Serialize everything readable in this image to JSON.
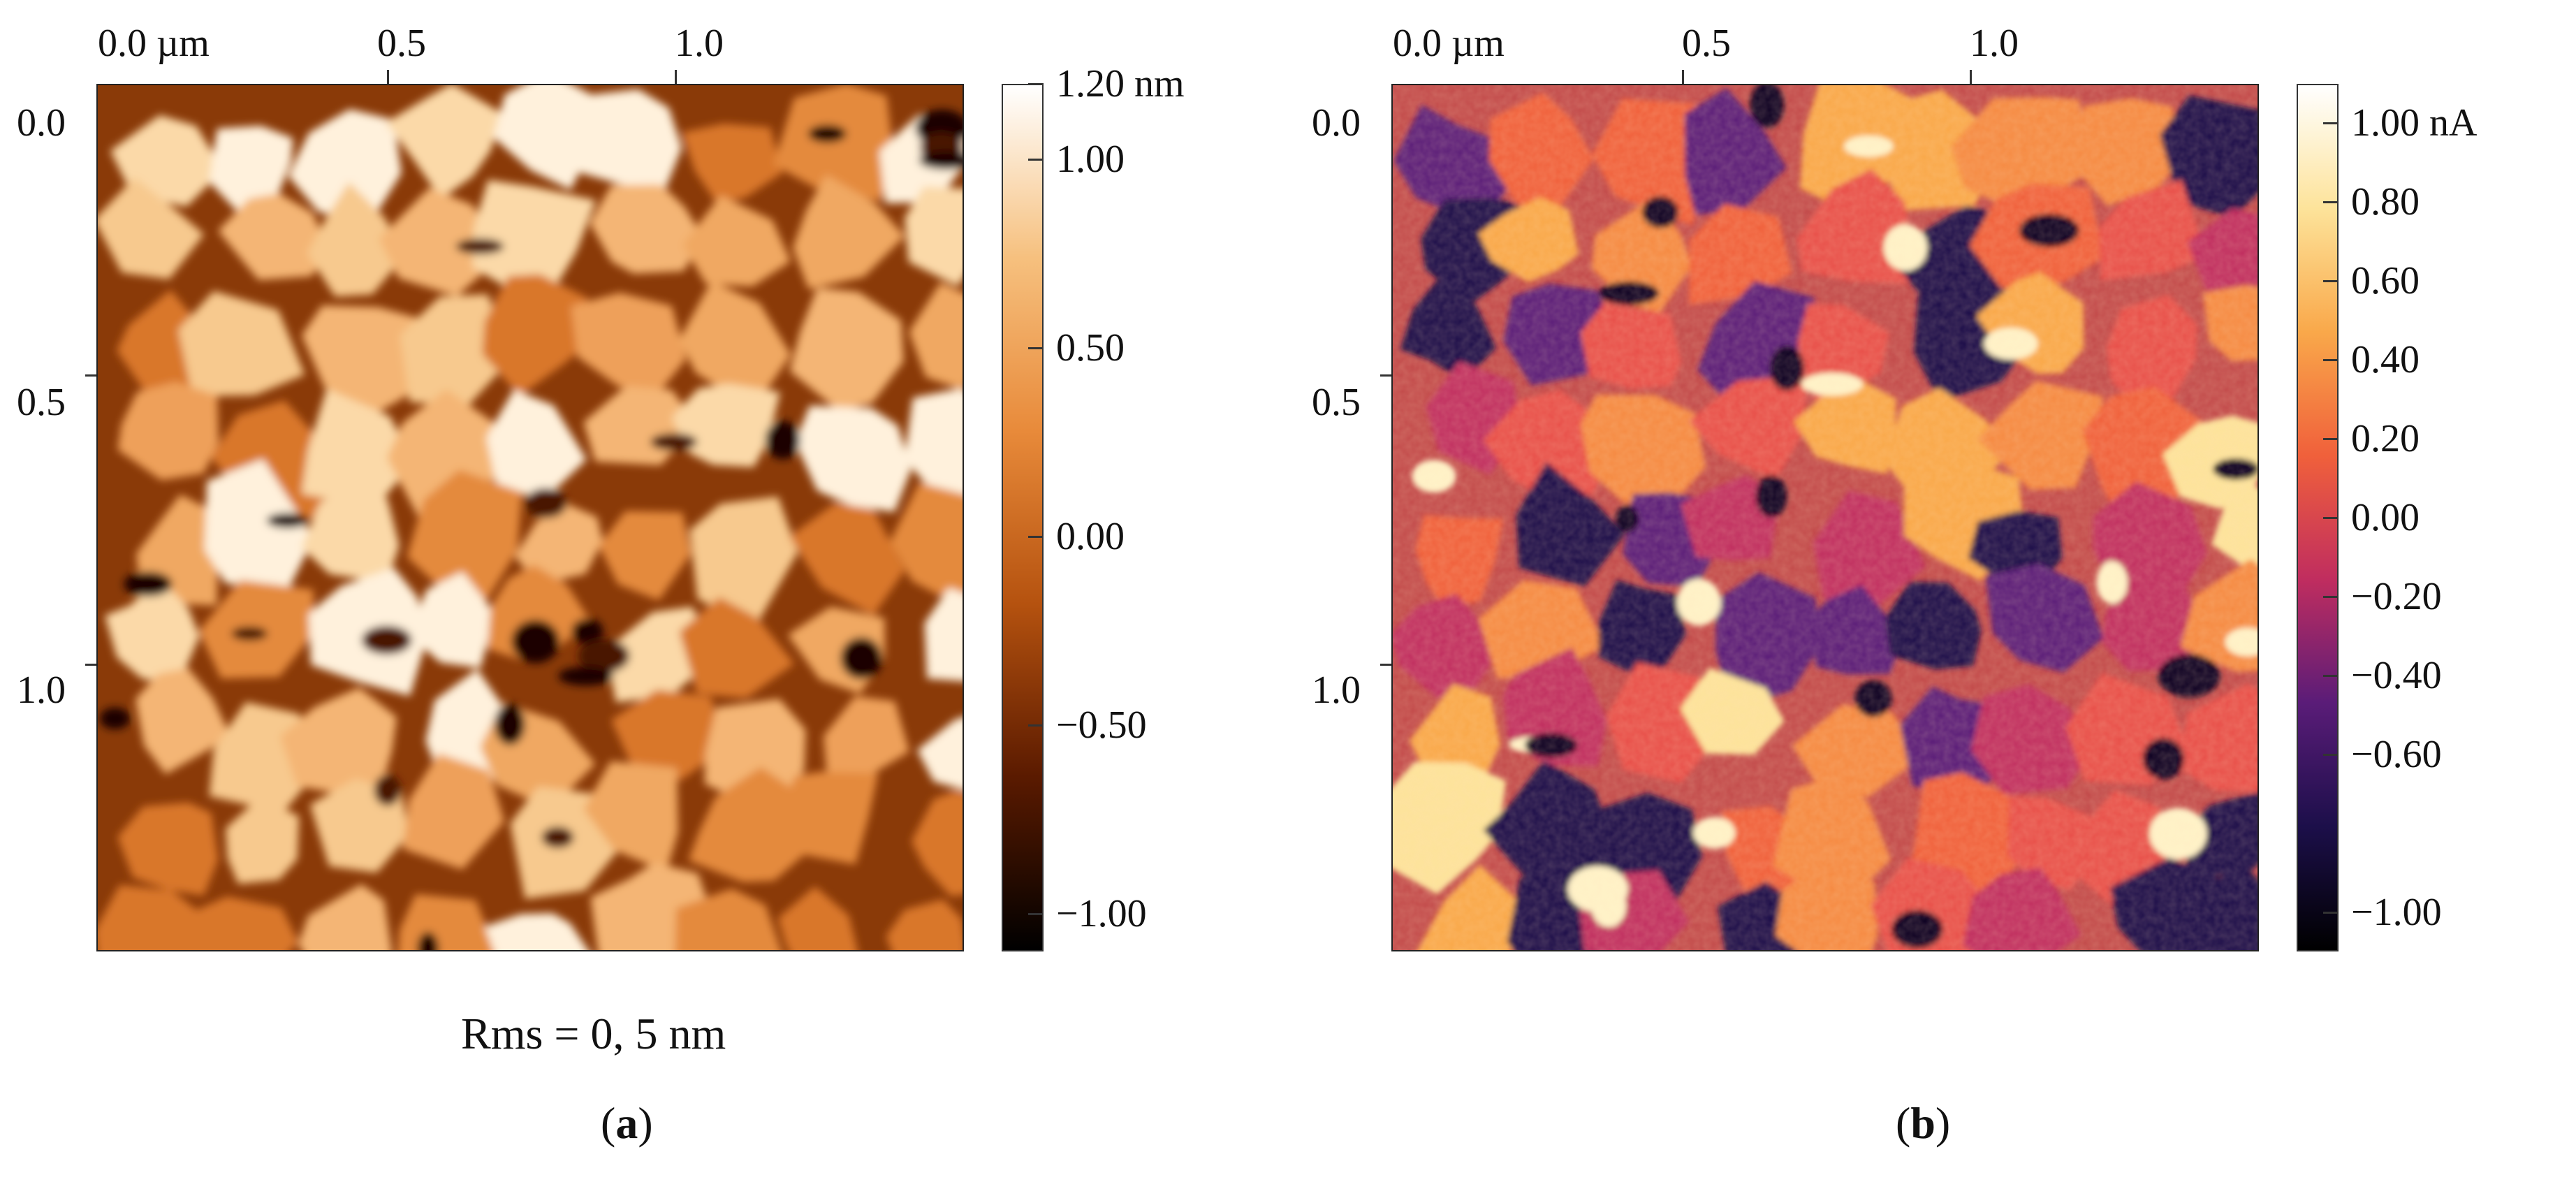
{
  "panel_a": {
    "x_ticks": [
      "0.0 µm",
      "0.5",
      "1.0"
    ],
    "y_ticks": [
      "0.0",
      "0.5",
      "1.0"
    ],
    "colorbar": {
      "labels": [
        "1.20 nm",
        "1.00",
        "0.50",
        "0.00",
        "−0.50",
        "−1.00"
      ],
      "values": [
        1.2,
        1.0,
        0.5,
        0.0,
        -0.5,
        -1.0
      ],
      "range": [
        -1.1,
        1.2
      ],
      "colormap": [
        "#000000",
        "#5a1a00",
        "#b5520f",
        "#e88a3a",
        "#f6c07e",
        "#ffffff"
      ]
    },
    "rms_text": "Rms = 0, 5 nm",
    "letter": "a"
  },
  "panel_b": {
    "x_ticks": [
      "0.0 µm",
      "0.5",
      "1.0"
    ],
    "y_ticks": [
      "0.0",
      "0.5",
      "1.0"
    ],
    "colorbar": {
      "labels": [
        "1.00 nA",
        "0.80",
        "0.60",
        "0.40",
        "0.20",
        "0.00",
        "−0.20",
        "−0.40",
        "−0.60",
        "−1.00"
      ],
      "values": [
        1.0,
        0.8,
        0.6,
        0.4,
        0.2,
        0.0,
        -0.2,
        -0.4,
        -0.6,
        -1.0
      ],
      "range": [
        -1.1,
        1.1
      ],
      "colormap": [
        "#000000",
        "#1c0f4a",
        "#5a1c78",
        "#c02d5f",
        "#f0603b",
        "#f9a84a",
        "#fde39a",
        "#ffffff"
      ]
    },
    "letter": "b"
  }
}
